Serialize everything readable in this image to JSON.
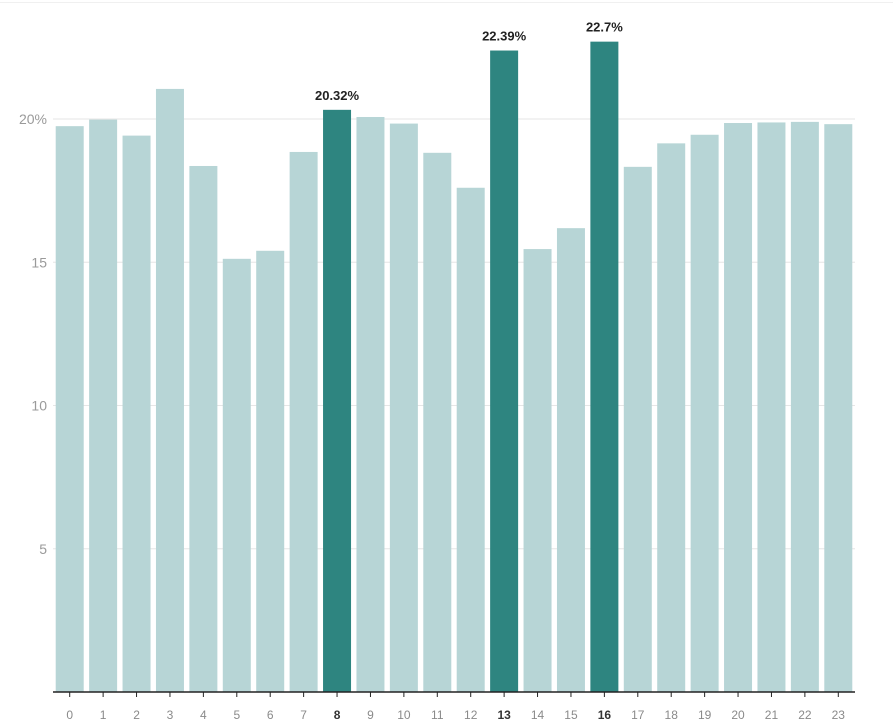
{
  "chart_data": {
    "type": "bar",
    "categories": [
      "0",
      "1",
      "2",
      "3",
      "4",
      "5",
      "6",
      "7",
      "8",
      "9",
      "10",
      "11",
      "12",
      "13",
      "14",
      "15",
      "16",
      "17",
      "18",
      "19",
      "20",
      "21",
      "22",
      "23"
    ],
    "values": [
      19.75,
      19.98,
      19.42,
      21.05,
      18.36,
      15.12,
      15.4,
      18.85,
      20.32,
      20.07,
      19.84,
      18.82,
      17.6,
      22.39,
      15.46,
      16.19,
      22.7,
      18.33,
      19.15,
      19.45,
      19.86,
      19.88,
      19.9,
      19.82
    ],
    "highlighted": [
      "8",
      "13",
      "16"
    ],
    "data_labels": [
      {
        "category": "8",
        "text": "20.32%"
      },
      {
        "category": "13",
        "text": "22.39%"
      },
      {
        "category": "16",
        "text": "22.7%"
      }
    ],
    "y_ticks": [
      {
        "value": 5,
        "label": "5"
      },
      {
        "value": 10,
        "label": "10"
      },
      {
        "value": 15,
        "label": "15"
      },
      {
        "value": 20,
        "label": "20%"
      }
    ],
    "ylim": [
      0,
      23
    ],
    "title": "",
    "xlabel": "",
    "ylabel": "",
    "grid": true,
    "colors": {
      "bar": "#b7d5d6",
      "highlight": "#2e8580",
      "axis": "#222222",
      "grid": "#e6e6e6"
    }
  }
}
